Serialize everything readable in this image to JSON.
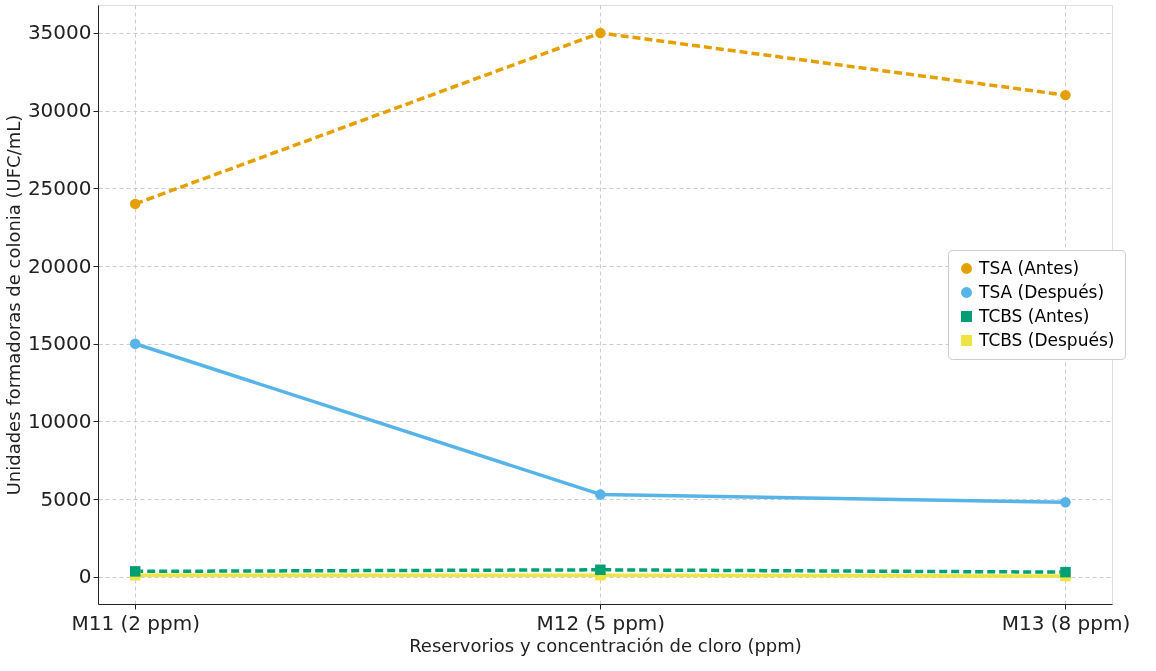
{
  "chart_data": {
    "type": "line",
    "xlabel": "Reservorios y concentración de cloro (ppm)",
    "ylabel": "Unidades formadoras de colonia (UFC/mL)",
    "categories": [
      "M11 (2 ppm)",
      "M12 (5 ppm)",
      "M13 (8 ppm)"
    ],
    "series": [
      {
        "name": "TSA (Antes)",
        "color": "#e69f00",
        "values": [
          24000,
          35000,
          31000
        ],
        "marker": "circle",
        "line_style": "dashed"
      },
      {
        "name": "TSA (Después)",
        "color": "#56b4e9",
        "values": [
          15000,
          5300,
          4800
        ],
        "marker": "circle",
        "line_style": "solid"
      },
      {
        "name": "TCBS (Antes)",
        "color": "#009e73",
        "values": [
          350,
          450,
          300
        ],
        "marker": "square",
        "line_style": "dashed"
      },
      {
        "name": "TCBS (Después)",
        "color": "#f0e442",
        "values": [
          100,
          100,
          50
        ],
        "marker": "square",
        "line_style": "solid"
      }
    ],
    "ylim": [
      -1750,
      36800
    ],
    "yticks": [
      0,
      5000,
      10000,
      15000,
      20000,
      25000,
      30000,
      35000
    ],
    "grid": true,
    "legend": "right"
  }
}
